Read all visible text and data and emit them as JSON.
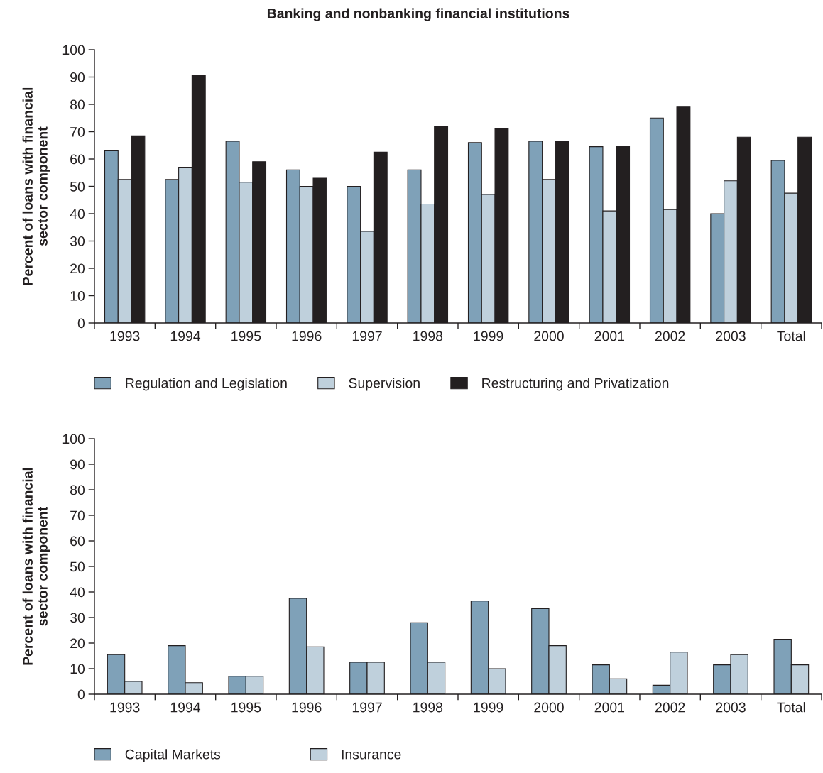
{
  "chart_data": [
    {
      "type": "bar",
      "title": "Banking and nonbanking financial institutions",
      "ylabel": "Percent of loans with financial\nsector component",
      "categories": [
        "1993",
        "1994",
        "1995",
        "1996",
        "1997",
        "1998",
        "1999",
        "2000",
        "2001",
        "2002",
        "2003",
        "Total"
      ],
      "series": [
        {
          "name": "Regulation and Legislation",
          "color": "#7fa1b8",
          "values": [
            63,
            52.5,
            66.5,
            56,
            50,
            56,
            66,
            66.5,
            64.5,
            75,
            40,
            59.5
          ]
        },
        {
          "name": "Supervision",
          "color": "#bfd0dc",
          "values": [
            52.5,
            57,
            51.5,
            50,
            33.5,
            43.5,
            47,
            52.5,
            41,
            41.5,
            52,
            47.5
          ]
        },
        {
          "name": "Restructuring and Privatization",
          "color": "#231f20",
          "values": [
            68.5,
            90.5,
            59,
            53,
            62.5,
            72,
            71,
            66.5,
            64.5,
            79,
            68,
            68
          ]
        }
      ],
      "ylim": [
        0,
        100
      ],
      "yticks": [
        0,
        10,
        20,
        30,
        40,
        50,
        60,
        70,
        80,
        90,
        100
      ],
      "legend": "bottom"
    },
    {
      "type": "bar",
      "ylabel": "Percent of loans with financial\nsector component",
      "categories": [
        "1993",
        "1994",
        "1995",
        "1996",
        "1997",
        "1998",
        "1999",
        "2000",
        "2001",
        "2002",
        "2003",
        "Total"
      ],
      "series": [
        {
          "name": "Capital Markets",
          "color": "#7fa1b8",
          "values": [
            15.5,
            19,
            7,
            37.5,
            12.5,
            28,
            36.5,
            33.5,
            11.5,
            3.5,
            11.5,
            21.5
          ]
        },
        {
          "name": "Insurance",
          "color": "#bfd0dc",
          "values": [
            5,
            4.5,
            7,
            18.5,
            12.5,
            12.5,
            10,
            19,
            6,
            16.5,
            15.5,
            11.5
          ]
        }
      ],
      "ylim": [
        0,
        100
      ],
      "yticks": [
        0,
        10,
        20,
        30,
        40,
        50,
        60,
        70,
        80,
        90,
        100
      ],
      "legend": "bottom"
    }
  ]
}
